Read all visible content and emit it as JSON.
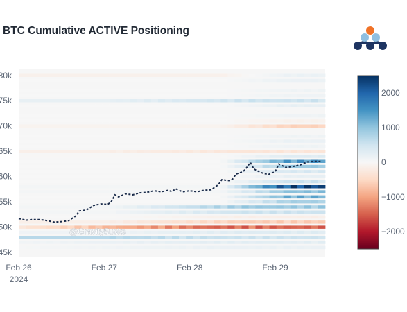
{
  "chart_data": {
    "type": "heatmap",
    "title": "BTC Cumulative ACTIVE Positioning",
    "x_ticks": [
      {
        "date": "Feb 26",
        "label": "Feb 26",
        "sublabel": "2024"
      },
      {
        "date": "Feb 27",
        "label": "Feb 27",
        "sublabel": ""
      },
      {
        "date": "Feb 28",
        "label": "Feb 28",
        "sublabel": ""
      },
      {
        "date": "Feb 29",
        "label": "Feb 29",
        "sublabel": ""
      }
    ],
    "x_range": [
      "2024-02-26 00:00",
      "2024-02-29 14:00"
    ],
    "y_ticks": [
      {
        "value": 45000,
        "label": "45k"
      },
      {
        "value": 50000,
        "label": "50k"
      },
      {
        "value": 55000,
        "label": "55k"
      },
      {
        "value": 60000,
        "label": "60k"
      },
      {
        "value": 65000,
        "label": "65k"
      },
      {
        "value": 70000,
        "label": "70k"
      },
      {
        "value": 75000,
        "label": "75k"
      },
      {
        "value": 80000,
        "label": "80k"
      }
    ],
    "y_range": [
      44200,
      81200
    ],
    "colorbar": {
      "ticks": [
        {
          "value": 2000,
          "label": "2000"
        },
        {
          "value": 1000,
          "label": "1000"
        },
        {
          "value": 0,
          "label": "0"
        },
        {
          "value": -1000,
          "label": "−1000"
        },
        {
          "value": -2000,
          "label": "−2000"
        }
      ],
      "range": [
        -2500,
        2500
      ],
      "colors": [
        "#67001f",
        "#b2182b",
        "#d6604d",
        "#f4a582",
        "#fddbc7",
        "#f7f7f7",
        "#d1e5f0",
        "#92c5de",
        "#4393c3",
        "#2166ac",
        "#053061"
      ]
    },
    "price_series": {
      "color": "#1a2b4a",
      "points": [
        [
          "2024-02-26 00:00",
          51700
        ],
        [
          "2024-02-26 02:00",
          51400
        ],
        [
          "2024-02-26 04:00",
          51500
        ],
        [
          "2024-02-26 06:00",
          51500
        ],
        [
          "2024-02-26 08:00",
          51300
        ],
        [
          "2024-02-26 10:00",
          51000
        ],
        [
          "2024-02-26 12:00",
          51100
        ],
        [
          "2024-02-26 14:00",
          51300
        ],
        [
          "2024-02-26 16:00",
          52200
        ],
        [
          "2024-02-26 17:00",
          53200
        ],
        [
          "2024-02-26 19:00",
          53400
        ],
        [
          "2024-02-26 21:00",
          54300
        ],
        [
          "2024-02-26 23:00",
          54600
        ],
        [
          "2024-02-27 01:00",
          54500
        ],
        [
          "2024-02-27 02:00",
          55100
        ],
        [
          "2024-02-27 03:00",
          56400
        ],
        [
          "2024-02-27 04:00",
          56000
        ],
        [
          "2024-02-27 06:00",
          56600
        ],
        [
          "2024-02-27 08:00",
          56400
        ],
        [
          "2024-02-27 10:00",
          56800
        ],
        [
          "2024-02-27 12:00",
          56900
        ],
        [
          "2024-02-27 14:00",
          57200
        ],
        [
          "2024-02-27 16:00",
          57000
        ],
        [
          "2024-02-27 18:00",
          57300
        ],
        [
          "2024-02-27 19:00",
          57000
        ],
        [
          "2024-02-27 20:00",
          57600
        ],
        [
          "2024-02-27 22:00",
          57000
        ],
        [
          "2024-02-28 00:00",
          57200
        ],
        [
          "2024-02-28 02:00",
          57000
        ],
        [
          "2024-02-28 04:00",
          57300
        ],
        [
          "2024-02-28 06:00",
          57400
        ],
        [
          "2024-02-28 08:00",
          58400
        ],
        [
          "2024-02-28 09:00",
          59400
        ],
        [
          "2024-02-28 11:00",
          59200
        ],
        [
          "2024-02-28 12:00",
          59500
        ],
        [
          "2024-02-28 13:00",
          60500
        ],
        [
          "2024-02-28 15:00",
          61000
        ],
        [
          "2024-02-28 16:00",
          61800
        ],
        [
          "2024-02-28 17:00",
          62800
        ],
        [
          "2024-02-28 18:00",
          61500
        ],
        [
          "2024-02-28 20:00",
          60800
        ],
        [
          "2024-02-28 22:00",
          60400
        ],
        [
          "2024-02-29 00:00",
          61000
        ],
        [
          "2024-02-29 01:00",
          62500
        ],
        [
          "2024-02-29 03:00",
          61800
        ],
        [
          "2024-02-29 05:00",
          62000
        ],
        [
          "2024-02-29 07:00",
          62300
        ],
        [
          "2024-02-29 09:00",
          62900
        ],
        [
          "2024-02-29 11:00",
          63000
        ],
        [
          "2024-02-29 13:00",
          63000
        ]
      ]
    },
    "heatmap_bands": [
      {
        "price": 46000,
        "base": 30,
        "ramp": [
          0,
          150
        ]
      },
      {
        "price": 47000,
        "base": 80,
        "ramp": [
          0,
          250
        ]
      },
      {
        "price": 48000,
        "base": 700,
        "ramp": [
          1,
          500
        ]
      },
      {
        "price": 49000,
        "base": 100,
        "ramp": [
          1,
          300
        ]
      },
      {
        "price": 50000,
        "base": -300,
        "ramp": [
          0,
          -1400
        ]
      },
      {
        "price": 51000,
        "base": -150,
        "ramp": [
          1,
          -600
        ]
      },
      {
        "price": 52000,
        "base": 0,
        "ramp": [
          1,
          -150
        ]
      },
      {
        "price": 53000,
        "base": 50,
        "ramp": [
          1,
          500
        ]
      },
      {
        "price": 54000,
        "base": 50,
        "ramp": [
          1,
          900
        ]
      },
      {
        "price": 55000,
        "base": 0,
        "ramp": [
          2,
          800
        ]
      },
      {
        "price": 56000,
        "base": 0,
        "ramp": [
          2,
          1200
        ]
      },
      {
        "price": 57000,
        "base": 50,
        "ramp": [
          2,
          1000
        ]
      },
      {
        "price": 58000,
        "base": 50,
        "ramp": [
          2,
          2200
        ]
      },
      {
        "price": 59000,
        "base": 0,
        "ramp": [
          2,
          500
        ]
      },
      {
        "price": 60000,
        "base": 0,
        "ramp": [
          2,
          200
        ]
      },
      {
        "price": 61000,
        "base": 0,
        "ramp": [
          2,
          400
        ]
      },
      {
        "price": 62000,
        "base": 0,
        "ramp": [
          2,
          900
        ]
      },
      {
        "price": 63000,
        "base": 0,
        "ramp": [
          2,
          1400
        ]
      },
      {
        "price": 64000,
        "base": -20,
        "ramp": [
          2,
          300
        ]
      },
      {
        "price": 65000,
        "base": -150,
        "ramp": [
          1,
          -300
        ]
      },
      {
        "price": 66000,
        "base": 0,
        "ramp": [
          2,
          100
        ]
      },
      {
        "price": 67000,
        "base": 0,
        "ramp": [
          2,
          150
        ]
      },
      {
        "price": 68000,
        "base": 0,
        "ramp": [
          2,
          100
        ]
      },
      {
        "price": 70000,
        "base": -80,
        "ramp": [
          2,
          -550
        ]
      },
      {
        "price": 71000,
        "base": 0,
        "ramp": [
          2,
          -100
        ]
      },
      {
        "price": 72000,
        "base": 0,
        "ramp": [
          2,
          100
        ]
      },
      {
        "price": 74000,
        "base": 0,
        "ramp": [
          2,
          200
        ]
      },
      {
        "price": 75000,
        "base": 200,
        "ramp": [
          1,
          500
        ]
      },
      {
        "price": 76000,
        "base": 0,
        "ramp": [
          2,
          100
        ]
      },
      {
        "price": 77000,
        "base": 0,
        "ramp": [
          2,
          100
        ]
      },
      {
        "price": 79000,
        "base": 0,
        "ramp": [
          2,
          150
        ]
      },
      {
        "price": 80000,
        "base": -120,
        "ramp": [
          2,
          150
        ]
      }
    ],
    "watermark": "@Gravity5ucks"
  },
  "logo": {
    "dot_colors": [
      "#f07227",
      "#8fbfe0",
      "#8fbfe0",
      "#1d3461",
      "#1d3461",
      "#1d3461"
    ]
  }
}
